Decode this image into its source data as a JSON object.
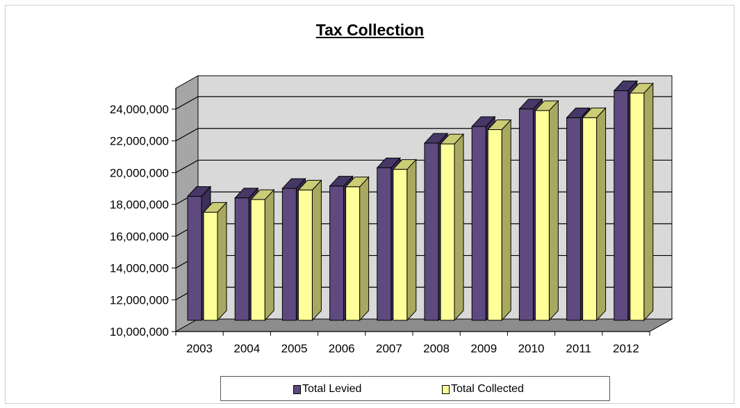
{
  "chart_data": {
    "type": "bar",
    "title": "Tax Collection",
    "xlabel": "",
    "ylabel": "",
    "categories": [
      "2003",
      "2004",
      "2005",
      "2006",
      "2007",
      "2008",
      "2009",
      "2010",
      "2011",
      "2012"
    ],
    "series": [
      {
        "name": "Total Levied",
        "values": [
          17800000,
          17700000,
          18300000,
          18450000,
          19600000,
          21150000,
          22200000,
          23300000,
          22750000,
          24450000
        ]
      },
      {
        "name": "Total Collected",
        "values": [
          16800000,
          17600000,
          18200000,
          18400000,
          19500000,
          21100000,
          22000000,
          23200000,
          22750000,
          24300000
        ]
      }
    ],
    "ylim": [
      10000000,
      24000000
    ],
    "yticks": [
      10000000,
      12000000,
      14000000,
      16000000,
      18000000,
      20000000,
      22000000,
      24000000
    ],
    "ytick_labels": [
      "10,000,000",
      "12,000,000",
      "14,000,000",
      "16,000,000",
      "18,000,000",
      "20,000,000",
      "22,000,000",
      "24,000,000"
    ],
    "grid": true,
    "legend_position": "bottom",
    "colors": {
      "levied_front": "#5e4a7e",
      "levied_top": "#453866",
      "levied_side": "#3a2f57",
      "collected_front": "#ffff99",
      "collected_top": "#cccc77",
      "collected_side": "#a8a860",
      "wall": "#d9d9d9",
      "side_wall": "#a6a6a6",
      "floor": "#8c8c8c"
    }
  }
}
